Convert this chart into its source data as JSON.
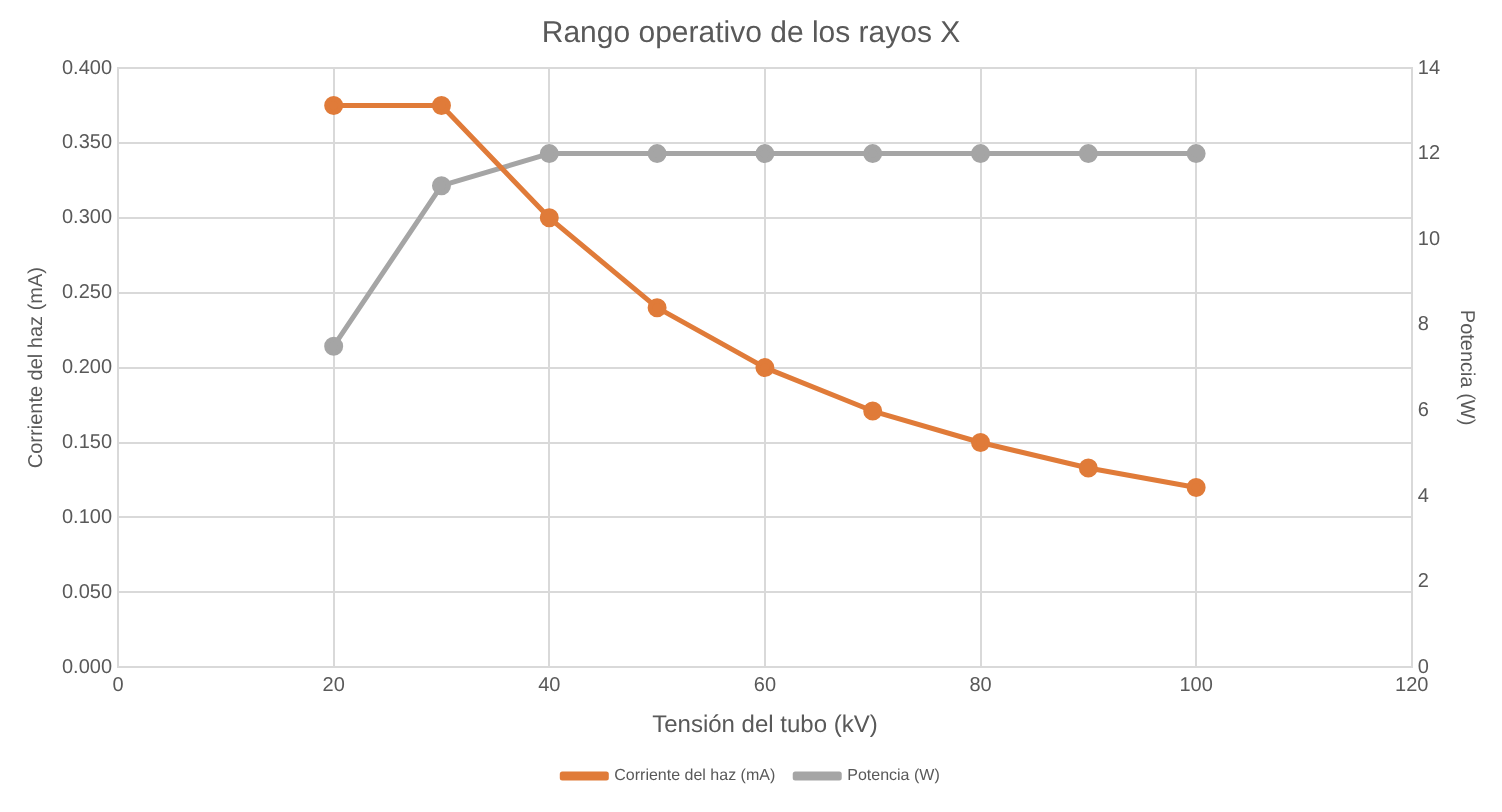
{
  "chart_data": {
    "type": "line",
    "title": "Rango operativo de los rayos X",
    "xlabel": "Tensión del tubo (kV)",
    "ylabel": "Corriente del haz (mA)",
    "y2label": "Potencia (W)",
    "x": [
      20,
      30,
      40,
      50,
      60,
      70,
      80,
      90,
      100
    ],
    "series": [
      {
        "name": "Corriente del haz (mA)",
        "color": "#e07b39",
        "values": [
          0.375,
          0.375,
          0.3,
          0.24,
          0.2,
          0.171,
          0.15,
          0.133,
          0.12
        ]
      },
      {
        "name": "Potencia (W)",
        "color": "#a5a5a5",
        "axis": "y2",
        "values": [
          7.5,
          11.25,
          12,
          12,
          12,
          12,
          12,
          12,
          12
        ]
      }
    ],
    "xlim": [
      0,
      120
    ],
    "xticks": [
      0,
      20,
      40,
      60,
      80,
      100,
      120
    ],
    "ylim": [
      0,
      0.4
    ],
    "yticks": [
      {
        "value": 0,
        "label": "0.000"
      },
      {
        "value": 0.05,
        "label": "0.050"
      },
      {
        "value": 0.1,
        "label": "0.100"
      },
      {
        "value": 0.15,
        "label": "0.150"
      },
      {
        "value": 0.2,
        "label": "0.200"
      },
      {
        "value": 0.25,
        "label": "0.250"
      },
      {
        "value": 0.3,
        "label": "0.300"
      },
      {
        "value": 0.35,
        "label": "0.350"
      },
      {
        "value": 0.4,
        "label": "0.400"
      }
    ],
    "y2lim": [
      0,
      14
    ],
    "y2ticks": [
      0,
      2,
      4,
      6,
      8,
      10,
      12,
      14
    ],
    "grid": true,
    "legend": "bottom",
    "marker": "circle",
    "line_style": "solid"
  }
}
